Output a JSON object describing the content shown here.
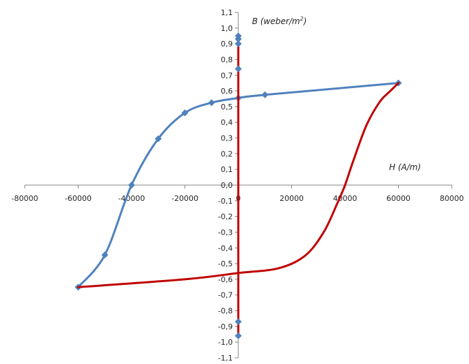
{
  "chart_data": {
    "type": "scatter",
    "title": "",
    "xlabel": "H (A/m)",
    "ylabel_main": "B (weber/m",
    "ylabel_sup": "2",
    "ylabel_close": ")",
    "xlim": [
      -80000,
      80000
    ],
    "ylim": [
      -1.1,
      1.1
    ],
    "x_ticks": [
      -80000,
      -60000,
      -40000,
      -20000,
      0,
      20000,
      40000,
      60000,
      80000
    ],
    "x_tick_labels": [
      "-80000",
      "-60000",
      "-40000",
      "-20000",
      "0",
      "20000",
      "40000",
      "60000",
      "80000"
    ],
    "y_ticks": [
      1.1,
      1.0,
      0.9,
      0.8,
      0.7,
      0.6,
      0.5,
      0.4,
      0.3,
      0.2,
      0.1,
      0.0,
      -0.1,
      -0.2,
      -0.3,
      -0.4,
      -0.5,
      -0.6,
      -0.7,
      -0.8,
      -0.9,
      -1.0,
      -1.1
    ],
    "y_tick_labels": [
      "1,1",
      "1,0",
      "0,9",
      "0,8",
      "0,7",
      "0,6",
      "0,5",
      "0,4",
      "0,3",
      "0,2",
      "0,1",
      "0,0",
      "-0,1",
      "-0,2",
      "-0,3",
      "-0,4",
      "-0,5",
      "-0,6",
      "-0,7",
      "-0,8",
      "-0,9",
      "-1,0",
      "-1,1"
    ],
    "grid": false,
    "series": [
      {
        "color": "#4f81bd",
        "markers": true,
        "points": [
          [
            60000,
            0.65
          ],
          [
            10000,
            0.575
          ],
          [
            0,
            0.555
          ],
          [
            -10000,
            0.525
          ],
          [
            -20000,
            0.46
          ],
          [
            -30000,
            0.295
          ],
          [
            -40000,
            0.0
          ],
          [
            -50000,
            -0.445
          ],
          [
            -60000,
            -0.65
          ]
        ]
      },
      {
        "color": "#c00000",
        "markers": false,
        "points": [
          [
            -60000,
            -0.65
          ],
          [
            -20000,
            -0.6
          ],
          [
            0,
            -0.56
          ],
          [
            15000,
            -0.53
          ],
          [
            25000,
            -0.45
          ],
          [
            32000,
            -0.3
          ],
          [
            37000,
            -0.12
          ],
          [
            40000,
            0.0
          ],
          [
            43000,
            0.15
          ],
          [
            48000,
            0.38
          ],
          [
            53000,
            0.53
          ],
          [
            57000,
            0.6
          ],
          [
            60000,
            0.65
          ]
        ]
      },
      {
        "color": "#c00000",
        "markers": false,
        "points": [
          [
            0,
            -0.96
          ],
          [
            0,
            0.95
          ]
        ]
      },
      {
        "color": "#4f81bd",
        "markers": true,
        "marker_only": true,
        "points": [
          [
            0,
            0.95
          ],
          [
            0,
            0.93
          ],
          [
            0,
            0.9
          ],
          [
            0,
            0.74
          ],
          [
            0,
            -0.87
          ],
          [
            0,
            -0.96
          ]
        ]
      }
    ]
  }
}
